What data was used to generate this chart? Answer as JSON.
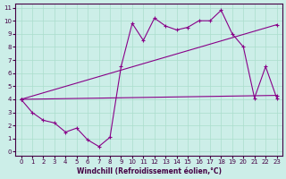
{
  "bg_color": "#cceee8",
  "line_color": "#880088",
  "grid_color": "#aaddcc",
  "xlabel": "Windchill (Refroidissement éolien,°C)",
  "xlim": [
    -0.5,
    23.5
  ],
  "ylim": [
    -0.3,
    11.3
  ],
  "xticks": [
    0,
    1,
    2,
    3,
    4,
    5,
    6,
    7,
    8,
    9,
    10,
    11,
    12,
    13,
    14,
    15,
    16,
    17,
    18,
    19,
    20,
    21,
    22,
    23
  ],
  "yticks": [
    0,
    1,
    2,
    3,
    4,
    5,
    6,
    7,
    8,
    9,
    10,
    11
  ],
  "line1_x": [
    0,
    1,
    2,
    3,
    4,
    5,
    6,
    7,
    8,
    9,
    10,
    11,
    12,
    13,
    14,
    15,
    16,
    17,
    18,
    19,
    20,
    21,
    22,
    23
  ],
  "line1_y": [
    4.0,
    3.0,
    2.4,
    2.2,
    1.5,
    1.8,
    0.9,
    0.4,
    1.1,
    6.5,
    9.8,
    8.5,
    10.2,
    9.6,
    9.3,
    9.5,
    10.0,
    10.0,
    10.8,
    9.0,
    8.0,
    4.1,
    6.5,
    4.1
  ],
  "line2_x": [
    0,
    23
  ],
  "line2_y": [
    4.0,
    9.7
  ],
  "line3_x": [
    0,
    23
  ],
  "line3_y": [
    4.0,
    4.3
  ],
  "tick_color": "#440044",
  "tick_fontsize": 5,
  "xlabel_fontsize": 5.5
}
